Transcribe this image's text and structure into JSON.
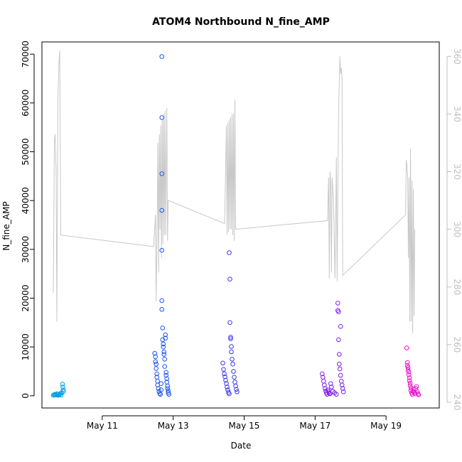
{
  "chart_data": {
    "type": "scatter",
    "title": "ATOM4 Northbound N_fine_AMP",
    "xlabel": "Date",
    "ylabel": "N_fine_AMP",
    "x_tick_labels": [
      "May 11",
      "May 13",
      "May 15",
      "May 17",
      "May 19"
    ],
    "x_tick_days": [
      11,
      13,
      15,
      17,
      19
    ],
    "xlim_days": [
      9.3,
      20.5
    ],
    "ylim": [
      -2500,
      72500
    ],
    "y_ticks": [
      0,
      10000,
      20000,
      30000,
      40000,
      50000,
      60000,
      70000
    ],
    "y2lim": [
      238,
      365
    ],
    "y2_ticks": [
      240,
      260,
      280,
      300,
      320,
      340,
      360
    ],
    "colors": {
      "axis": "#000000",
      "secondary_axis": "#bfbfbf",
      "secondary_line": "#c8c8c8"
    },
    "series": [
      {
        "color": "#00a0e8",
        "points": [
          [
            9.62,
            100
          ],
          [
            9.64,
            200
          ],
          [
            9.66,
            300
          ],
          [
            9.68,
            250
          ],
          [
            9.7,
            150
          ],
          [
            9.72,
            400
          ],
          [
            9.74,
            350
          ],
          [
            9.76,
            100
          ],
          [
            9.78,
            200
          ],
          [
            9.8,
            300
          ],
          [
            9.82,
            450
          ],
          [
            9.84,
            120
          ],
          [
            9.86,
            600
          ],
          [
            9.88,
            2400
          ],
          [
            9.89,
            1800
          ],
          [
            9.9,
            1200
          ],
          [
            9.91,
            900
          ]
        ]
      },
      {
        "color": "#1a55f0",
        "points": [
          [
            12.48,
            8700
          ],
          [
            12.5,
            8000
          ],
          [
            12.5,
            7000
          ],
          [
            12.52,
            6500
          ],
          [
            12.52,
            5600
          ],
          [
            12.54,
            4500
          ],
          [
            12.54,
            3800
          ],
          [
            12.56,
            3000
          ],
          [
            12.56,
            2200
          ],
          [
            12.58,
            1500
          ],
          [
            12.6,
            900
          ],
          [
            12.62,
            500
          ],
          [
            12.64,
            300
          ],
          [
            12.66,
            1200
          ],
          [
            12.66,
            2500
          ],
          [
            12.68,
            69500
          ],
          [
            12.68,
            57000
          ],
          [
            12.68,
            45500
          ],
          [
            12.68,
            38000
          ],
          [
            12.68,
            29800
          ],
          [
            12.68,
            19500
          ],
          [
            12.68,
            17700
          ],
          [
            12.7,
            13900
          ],
          [
            12.7,
            11500
          ],
          [
            12.72,
            10600
          ],
          [
            12.72,
            10000
          ],
          [
            12.74,
            9000
          ],
          [
            12.74,
            8500
          ],
          [
            12.76,
            7500
          ],
          [
            12.76,
            6000
          ],
          [
            12.78,
            12500
          ],
          [
            12.78,
            11800
          ],
          [
            12.8,
            4800
          ],
          [
            12.8,
            4200
          ],
          [
            12.82,
            3500
          ],
          [
            12.82,
            2800
          ],
          [
            12.84,
            2000
          ],
          [
            12.84,
            1500
          ],
          [
            12.86,
            1000
          ],
          [
            12.86,
            600
          ],
          [
            12.88,
            300
          ]
        ]
      },
      {
        "color": "#3a38f2",
        "points": [
          [
            14.4,
            6700
          ],
          [
            14.42,
            5400
          ],
          [
            14.44,
            4500
          ],
          [
            14.46,
            3900
          ],
          [
            14.48,
            3200
          ],
          [
            14.5,
            2500
          ],
          [
            14.52,
            1800
          ],
          [
            14.54,
            1200
          ],
          [
            14.56,
            700
          ],
          [
            14.58,
            400
          ],
          [
            14.58,
            29300
          ],
          [
            14.6,
            23900
          ],
          [
            14.6,
            15000
          ],
          [
            14.62,
            12000
          ],
          [
            14.62,
            11700
          ],
          [
            14.64,
            10100
          ],
          [
            14.64,
            9000
          ],
          [
            14.66,
            7500
          ],
          [
            14.68,
            6500
          ],
          [
            14.7,
            5000
          ],
          [
            14.72,
            3800
          ],
          [
            14.74,
            2800
          ],
          [
            14.76,
            2000
          ],
          [
            14.78,
            1300
          ],
          [
            14.8,
            800
          ]
        ]
      },
      {
        "color": "#8020e8",
        "points": [
          [
            17.2,
            4500
          ],
          [
            17.22,
            3800
          ],
          [
            17.24,
            3000
          ],
          [
            17.26,
            2200
          ],
          [
            17.28,
            1500
          ],
          [
            17.3,
            1000
          ],
          [
            17.32,
            600
          ],
          [
            17.34,
            300
          ],
          [
            17.36,
            1200
          ],
          [
            17.38,
            800
          ],
          [
            17.4,
            500
          ],
          [
            17.42,
            400
          ],
          [
            17.44,
            2500
          ],
          [
            17.46,
            1800
          ],
          [
            17.5,
            900
          ],
          [
            17.55,
            600
          ],
          [
            17.6,
            300
          ],
          [
            17.64,
            19000
          ],
          [
            17.64,
            17500
          ],
          [
            17.66,
            17200
          ],
          [
            17.66,
            11500
          ],
          [
            17.68,
            8500
          ],
          [
            17.68,
            6500
          ],
          [
            17.7,
            5500
          ],
          [
            17.72,
            14200
          ],
          [
            17.72,
            4200
          ],
          [
            17.74,
            3000
          ],
          [
            17.76,
            2200
          ],
          [
            17.78,
            1500
          ],
          [
            17.8,
            800
          ]
        ]
      },
      {
        "color": "#f010d0",
        "points": [
          [
            19.58,
            9800
          ],
          [
            19.6,
            6800
          ],
          [
            19.6,
            6200
          ],
          [
            19.62,
            5800
          ],
          [
            19.62,
            5300
          ],
          [
            19.64,
            4900
          ],
          [
            19.64,
            4300
          ],
          [
            19.66,
            3700
          ],
          [
            19.66,
            3100
          ],
          [
            19.68,
            2600
          ],
          [
            19.68,
            2100
          ],
          [
            19.7,
            1600
          ],
          [
            19.7,
            1100
          ],
          [
            19.72,
            600
          ],
          [
            19.74,
            300
          ],
          [
            19.76,
            900
          ],
          [
            19.78,
            1400
          ],
          [
            19.8,
            700
          ],
          [
            19.82,
            400
          ],
          [
            19.84,
            1500
          ],
          [
            19.86,
            1900
          ],
          [
            19.88,
            800
          ],
          [
            19.9,
            400
          ],
          [
            19.92,
            200
          ]
        ]
      }
    ],
    "secondary_series": {
      "color": "#c8c8c8",
      "points": [
        [
          9.62,
          278
        ],
        [
          9.65,
          330
        ],
        [
          9.67,
          333
        ],
        [
          9.7,
          320
        ],
        [
          9.72,
          268
        ],
        [
          9.75,
          345
        ],
        [
          9.78,
          358
        ],
        [
          9.8,
          362
        ],
        [
          9.83,
          298
        ],
        [
          12.45,
          294
        ],
        [
          12.5,
          305
        ],
        [
          12.52,
          275
        ],
        [
          12.55,
          305
        ],
        [
          12.57,
          330
        ],
        [
          12.59,
          285
        ],
        [
          12.61,
          333
        ],
        [
          12.63,
          300
        ],
        [
          12.65,
          336
        ],
        [
          12.67,
          290
        ],
        [
          12.69,
          338
        ],
        [
          12.71,
          295
        ],
        [
          12.73,
          340
        ],
        [
          12.75,
          298
        ],
        [
          12.77,
          341
        ],
        [
          12.79,
          298
        ],
        [
          12.82,
          342
        ],
        [
          12.84,
          296
        ],
        [
          12.86,
          310
        ],
        [
          14.45,
          302
        ],
        [
          14.5,
          336
        ],
        [
          14.52,
          298
        ],
        [
          14.54,
          337
        ],
        [
          14.56,
          299
        ],
        [
          14.58,
          338
        ],
        [
          14.6,
          300
        ],
        [
          14.62,
          339
        ],
        [
          14.64,
          300
        ],
        [
          14.66,
          340
        ],
        [
          14.68,
          298
        ],
        [
          14.7,
          340
        ],
        [
          14.72,
          296
        ],
        [
          14.74,
          345
        ],
        [
          14.76,
          300
        ],
        [
          17.35,
          303
        ],
        [
          17.38,
          318
        ],
        [
          17.4,
          283
        ],
        [
          17.42,
          320
        ],
        [
          17.44,
          316
        ],
        [
          17.46,
          285
        ],
        [
          17.48,
          318
        ],
        [
          17.52,
          310
        ],
        [
          17.56,
          283
        ],
        [
          17.6,
          325
        ],
        [
          17.62,
          282
        ],
        [
          17.66,
          340
        ],
        [
          17.7,
          360
        ],
        [
          17.72,
          354
        ],
        [
          17.74,
          356
        ],
        [
          17.76,
          352
        ],
        [
          17.78,
          284
        ],
        [
          19.55,
          305
        ],
        [
          19.57,
          324
        ],
        [
          19.59,
          322
        ],
        [
          19.61,
          318
        ],
        [
          19.63,
          290
        ],
        [
          19.65,
          318
        ],
        [
          19.67,
          268
        ],
        [
          19.69,
          328
        ],
        [
          19.71,
          268
        ],
        [
          19.73,
          317
        ],
        [
          19.75,
          264
        ],
        [
          19.77,
          314
        ],
        [
          19.79,
          270
        ],
        [
          19.81,
          300
        ]
      ]
    }
  }
}
